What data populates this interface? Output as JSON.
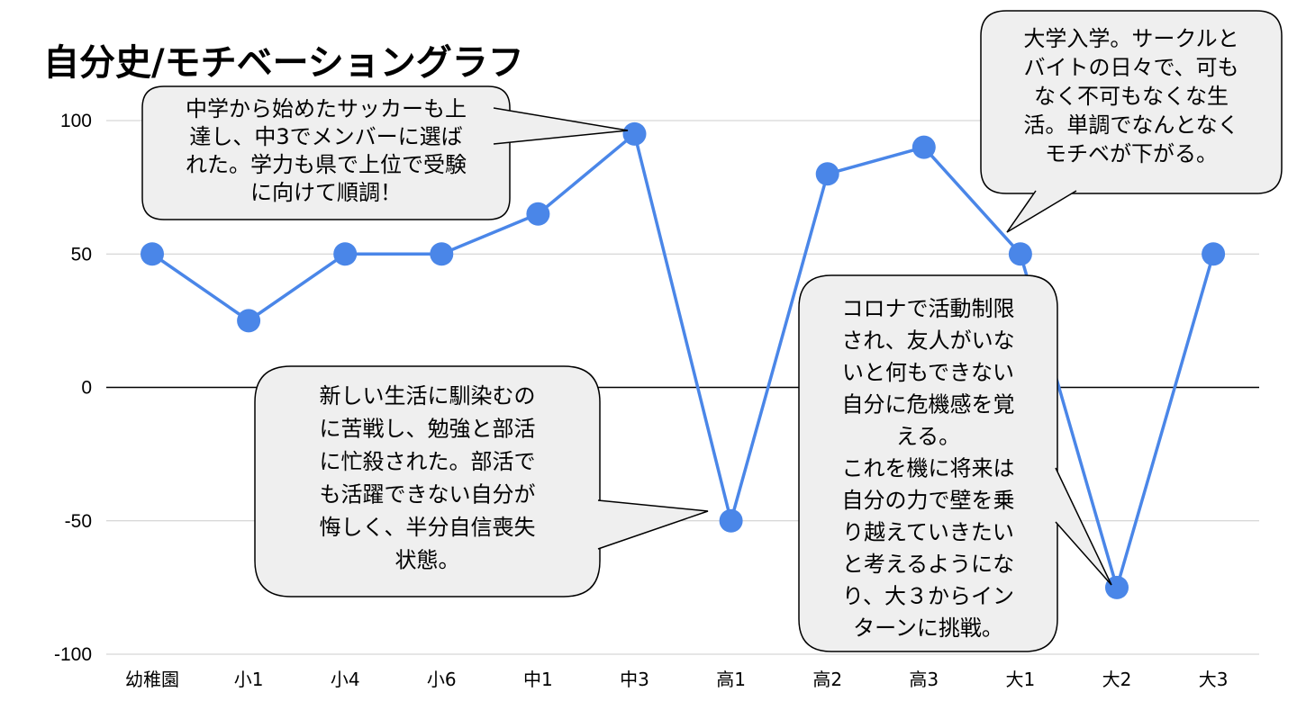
{
  "chart_data": {
    "type": "line",
    "title": "自分史/モチベーショングラフ",
    "xlabel": "",
    "ylabel": "",
    "categories": [
      "幼稚園",
      "小1",
      "小4",
      "小6",
      "中1",
      "中3",
      "高1",
      "高2",
      "高3",
      "大1",
      "大2",
      "大3"
    ],
    "series": [
      {
        "values": [
          50,
          25,
          50,
          50,
          65,
          95,
          -50,
          80,
          90,
          50,
          -75,
          50
        ]
      }
    ],
    "ylim": [
      -100,
      100
    ],
    "yticks": [
      100,
      50,
      0,
      -50,
      -100
    ],
    "grid": true,
    "line_color": "#4a86e8",
    "zero_line_color": "#000000",
    "annotations": [
      {
        "point": "中3",
        "lines": [
          "中学から始めたサッカーも上",
          "達し、中3でメンバーに選ば",
          "れた。学力も県で上位で受験",
          "に向けて順調！"
        ]
      },
      {
        "point": "高1",
        "lines": [
          "新しい生活に馴染むの",
          "に苦戦し、勉強と部活",
          "に忙殺された。部活で",
          "も活躍できない自分が",
          "悔しく、半分自信喪失",
          "状態。"
        ]
      },
      {
        "point": "大1",
        "lines": [
          "大学入学。サークルと",
          "バイトの日々で、可も",
          "なく不可もなくな生",
          "活。単調でなんとなく",
          "モチベが下がる。"
        ]
      },
      {
        "point": "大2",
        "lines": [
          "コロナで活動制限",
          "され、友人がいな",
          "いと何もできない",
          "自分に危機感を覚",
          "える。",
          "これを機に将来は",
          "自分の力で壁を乗",
          "り越えていきたい",
          "と考えるようにな",
          "り、大３からイン",
          "ターンに挑戦。"
        ]
      }
    ]
  }
}
